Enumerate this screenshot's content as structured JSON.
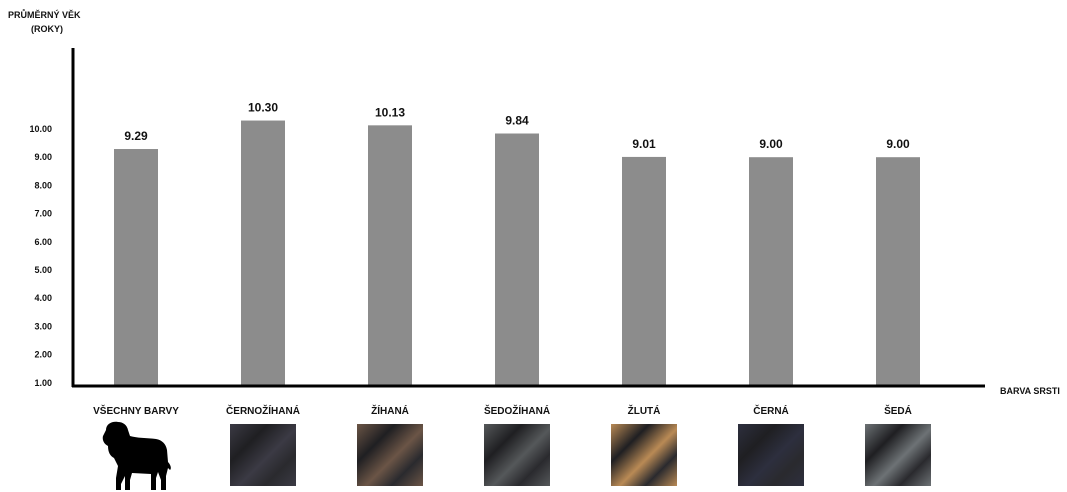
{
  "chart_data": {
    "type": "bar",
    "title": "",
    "ylabel_lines": [
      "PRŮMĚRNÝ VĚK",
      "(ROKY)"
    ],
    "xlabel": "BARVA SRSTI",
    "categories": [
      "VŠECHNY BARVY",
      "ČERNOŽÍHANÁ",
      "ŽÍHANÁ",
      "ŠEDOŽÍHANÁ",
      "ŽLUTÁ",
      "ČERNÁ",
      "ŠEDÁ"
    ],
    "values": [
      9.29,
      10.3,
      10.13,
      9.84,
      9.01,
      9.0,
      9.0
    ],
    "value_labels": [
      "9.29",
      "10.30",
      "10.13",
      "9.84",
      "9.01",
      "9.00",
      "9.00"
    ],
    "yticks": [
      "1.00",
      "2.00",
      "3.00",
      "4.00",
      "5.00",
      "6.00",
      "7.00",
      "8.00",
      "9.00",
      "10.00"
    ],
    "ylim": [
      0,
      11
    ],
    "grid": false,
    "bar_color": "#8c8c8c",
    "swatch_colors": [
      null,
      "#3b3a44",
      "#6b5546",
      "#55585a",
      "#b98a55",
      "#2d2f3e",
      "#6d7275"
    ],
    "category_icons": [
      "dog-silhouette-icon",
      "coat-swatch",
      "coat-swatch",
      "coat-swatch",
      "coat-swatch",
      "coat-swatch",
      "coat-swatch"
    ]
  }
}
